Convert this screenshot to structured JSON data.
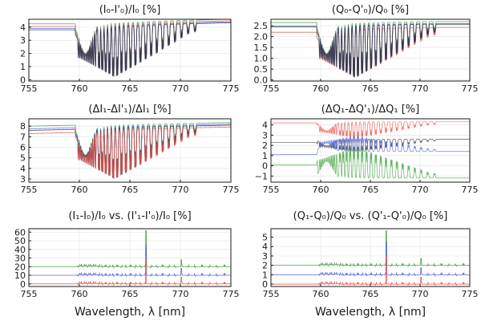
{
  "figure": {
    "x_label": "Wavelength, λ [nm]"
  },
  "chart_data": [
    {
      "type": "line",
      "title": "(I₀-I'₀)/I₀ [%]",
      "xlim": [
        755,
        775
      ],
      "ylim": [
        -0.1,
        4.6
      ],
      "xticks": [
        755,
        760,
        765,
        770,
        775
      ],
      "yticks": [
        0,
        1,
        2,
        3,
        4
      ],
      "ytick_labels": [
        "0",
        "1",
        "2",
        "3",
        "4"
      ],
      "grid": true,
      "legend": "none",
      "continuum": {
        "x": [
          755,
          759.8,
          760.2,
          770,
          775
        ],
        "values": [
          3.9,
          3.9,
          4.0,
          4.3,
          4.4
        ]
      },
      "absorption": {
        "band_start": 759.6,
        "band_end": 771.5,
        "min": 0.2
      },
      "series": [
        {
          "color": "#3a9e3a",
          "offset": 0.35
        },
        {
          "color": "#e8504a",
          "offset": 0.15
        },
        {
          "color": "#4a5fe0",
          "offset": 0.0
        },
        {
          "color": "#333333",
          "offset": -0.1
        }
      ]
    },
    {
      "type": "line",
      "title": "(Q₀-Q'₀)/Q₀ [%]",
      "xlim": [
        755,
        775
      ],
      "ylim": [
        -0.05,
        2.8
      ],
      "xticks": [
        755,
        760,
        765,
        770,
        775
      ],
      "yticks": [
        0,
        0.5,
        1,
        1.5,
        2,
        2.5
      ],
      "ytick_labels": [
        "0.0",
        "0.5",
        "1.0",
        "1.5",
        "2.0",
        "2.5"
      ],
      "grid": true,
      "legend": "none",
      "continuum": {
        "x": [
          755,
          759.8,
          760.2,
          770,
          775
        ],
        "values": [
          2.5,
          2.5,
          2.5,
          2.6,
          2.6
        ]
      },
      "absorption": {
        "band_start": 759.6,
        "band_end": 771.5,
        "min": 0.1
      },
      "series": [
        {
          "color": "#3a9e3a",
          "offset": 0.15
        },
        {
          "color": "#e8504a",
          "offset": -0.3
        },
        {
          "color": "#4a5fe0",
          "offset": 0.0
        },
        {
          "color": "#333333",
          "offset": -0.05
        }
      ]
    },
    {
      "type": "line",
      "title": "(ΔI₁-ΔI'₁)/ΔI₁ [%]",
      "xlim": [
        755,
        775
      ],
      "ylim": [
        2.7,
        8.7
      ],
      "xticks": [
        755,
        760,
        765,
        770,
        775
      ],
      "yticks": [
        3,
        4,
        5,
        6,
        7,
        8
      ],
      "ytick_labels": [
        "3",
        "4",
        "5",
        "6",
        "7",
        "8"
      ],
      "grid": true,
      "legend": "none",
      "continuum": {
        "x": [
          755,
          759.8,
          760.2,
          770,
          775
        ],
        "values": [
          7.6,
          7.7,
          7.8,
          8.0,
          8.1
        ]
      },
      "absorption": {
        "band_start": 759.6,
        "band_end": 771.5,
        "min": 3.0
      },
      "series": [
        {
          "color": "#3a9e3a",
          "offset": 0.4
        },
        {
          "color": "#4a5fe0",
          "offset": 0.15
        },
        {
          "color": "#333333",
          "offset": 0.0
        },
        {
          "color": "#e8504a",
          "offset": -0.3
        }
      ]
    },
    {
      "type": "line",
      "title": "(ΔQ₁-ΔQ'₁)/ΔQ₁ [%]",
      "xlim": [
        755,
        775
      ],
      "ylim": [
        -1.6,
        4.6
      ],
      "xticks": [
        755,
        760,
        765,
        770,
        775
      ],
      "yticks": [
        -1,
        0,
        1,
        2,
        3,
        4
      ],
      "ytick_labels": [
        "−1",
        "0",
        "1",
        "2",
        "3",
        "4"
      ],
      "grid": true,
      "legend": "none",
      "series_levels": [
        {
          "color": "#e8504a",
          "before": 4.2,
          "after": 4.3,
          "swing": 1.6,
          "direction": -1
        },
        {
          "color": "#333333",
          "before": 2.3,
          "after": 2.6,
          "swing": 1.2,
          "direction": -1
        },
        {
          "color": "#4a5fe0",
          "before": 1.1,
          "after": 1.4,
          "swing": 1.5,
          "direction": 1
        },
        {
          "color": "#3a9e3a",
          "before": 0.1,
          "after": -1.2,
          "swing": 3.0,
          "direction": 1
        }
      ],
      "absorption": {
        "band_start": 759.6,
        "band_end": 771.5
      }
    },
    {
      "type": "line",
      "title": "(I₁-I₀)/I₀ vs. (I'₁-I'₀)/I₀ [%]",
      "xlim": [
        755,
        775
      ],
      "ylim": [
        -3,
        64
      ],
      "xticks": [
        755,
        760,
        765,
        770,
        775
      ],
      "yticks": [
        0,
        10,
        20,
        30,
        40,
        50,
        60
      ],
      "ytick_labels": [
        "0",
        "10",
        "20",
        "30",
        "40",
        "50",
        "60"
      ],
      "grid": true,
      "legend": "none",
      "baselines": [
        {
          "color": "#3a9e3a",
          "level": 20,
          "spike": 62
        },
        {
          "color": "#4a5fe0",
          "level": 10,
          "spike": 45
        },
        {
          "color": "#e8504a",
          "level": 0,
          "spike": 30
        }
      ],
      "spike_x": 766.6,
      "secondary_spike_x": 770.1
    },
    {
      "type": "line",
      "title": "(Q₁-Q₀)/Q₀ vs. (Q'₁-Q'₀)/Q₀ [%]",
      "xlim": [
        755,
        775
      ],
      "ylim": [
        -0.25,
        5.9
      ],
      "xticks": [
        755,
        760,
        765,
        770,
        775
      ],
      "yticks": [
        0,
        1,
        2,
        3,
        4,
        5
      ],
      "ytick_labels": [
        "0",
        "1",
        "2",
        "3",
        "4",
        "5"
      ],
      "grid": true,
      "legend": "none",
      "baselines": [
        {
          "color": "#3a9e3a",
          "level": 2.0,
          "spike": 5.7
        },
        {
          "color": "#4a5fe0",
          "level": 1.0,
          "spike": 4.5
        },
        {
          "color": "#e8504a",
          "level": 0.0,
          "spike": 3.0
        }
      ],
      "spike_x": 766.6,
      "secondary_spike_x": 770.1
    }
  ]
}
